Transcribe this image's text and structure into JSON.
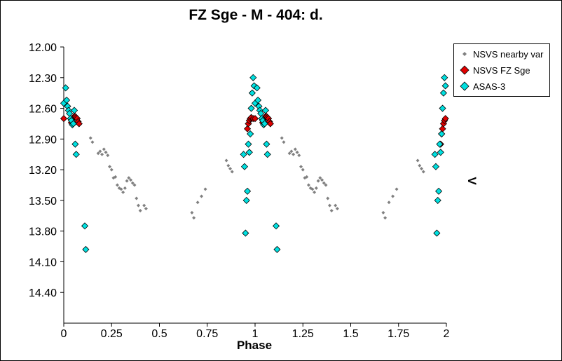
{
  "chart_data": {
    "type": "scatter",
    "title": "FZ Sge - M - 404: d.",
    "xlabel": "Phase",
    "ylabel": "V",
    "xlim": [
      0,
      2
    ],
    "ylim": [
      12.0,
      14.7
    ],
    "y_inverted": true,
    "x_ticks": [
      "0",
      "0.25",
      "0.5",
      "0.75",
      "1",
      "1.25",
      "1.5",
      "1.75",
      "2"
    ],
    "x_tick_values": [
      0,
      0.25,
      0.5,
      0.75,
      1,
      1.25,
      1.5,
      1.75,
      2
    ],
    "y_ticks": [
      "12.00",
      "12.30",
      "12.60",
      "12.90",
      "13.20",
      "13.50",
      "13.80",
      "14.10",
      "14.40"
    ],
    "y_tick_values": [
      12.0,
      12.3,
      12.6,
      12.9,
      13.2,
      13.5,
      13.8,
      14.1,
      14.4
    ],
    "grid": false,
    "legend_position": "top-right",
    "series": [
      {
        "name": "NSVS nearby var",
        "color": "#808080",
        "marker": "small-diamond",
        "points": [
          [
            0.14,
            12.89
          ],
          [
            0.15,
            12.93
          ],
          [
            0.18,
            13.04
          ],
          [
            0.19,
            13.02
          ],
          [
            0.2,
            13.05
          ],
          [
            0.21,
            13.0
          ],
          [
            0.22,
            13.03
          ],
          [
            0.23,
            13.06
          ],
          [
            0.24,
            13.17
          ],
          [
            0.25,
            13.2
          ],
          [
            0.26,
            13.28
          ],
          [
            0.27,
            13.27
          ],
          [
            0.28,
            13.35
          ],
          [
            0.29,
            13.38
          ],
          [
            0.3,
            13.39
          ],
          [
            0.31,
            13.42
          ],
          [
            0.32,
            13.38
          ],
          [
            0.33,
            13.31
          ],
          [
            0.34,
            13.28
          ],
          [
            0.35,
            13.3
          ],
          [
            0.36,
            13.33
          ],
          [
            0.37,
            13.35
          ],
          [
            0.38,
            13.48
          ],
          [
            0.39,
            13.55
          ],
          [
            0.4,
            13.6
          ],
          [
            0.42,
            13.55
          ],
          [
            0.43,
            13.58
          ],
          [
            0.67,
            13.62
          ],
          [
            0.68,
            13.67
          ],
          [
            0.7,
            13.52
          ],
          [
            0.72,
            13.46
          ],
          [
            0.74,
            13.39
          ],
          [
            0.85,
            13.11
          ],
          [
            0.86,
            13.16
          ],
          [
            0.87,
            13.19
          ],
          [
            0.88,
            13.22
          ],
          [
            1.14,
            12.89
          ],
          [
            1.15,
            12.93
          ],
          [
            1.18,
            13.04
          ],
          [
            1.19,
            13.02
          ],
          [
            1.2,
            13.05
          ],
          [
            1.21,
            13.0
          ],
          [
            1.22,
            13.03
          ],
          [
            1.23,
            13.06
          ],
          [
            1.24,
            13.17
          ],
          [
            1.25,
            13.2
          ],
          [
            1.26,
            13.28
          ],
          [
            1.27,
            13.27
          ],
          [
            1.28,
            13.35
          ],
          [
            1.29,
            13.38
          ],
          [
            1.3,
            13.39
          ],
          [
            1.31,
            13.42
          ],
          [
            1.32,
            13.38
          ],
          [
            1.33,
            13.31
          ],
          [
            1.34,
            13.28
          ],
          [
            1.35,
            13.3
          ],
          [
            1.36,
            13.33
          ],
          [
            1.37,
            13.35
          ],
          [
            1.38,
            13.48
          ],
          [
            1.39,
            13.55
          ],
          [
            1.4,
            13.6
          ],
          [
            1.42,
            13.55
          ],
          [
            1.43,
            13.58
          ],
          [
            1.67,
            13.62
          ],
          [
            1.68,
            13.67
          ],
          [
            1.7,
            13.52
          ],
          [
            1.72,
            13.46
          ],
          [
            1.74,
            13.39
          ],
          [
            1.85,
            13.11
          ],
          [
            1.86,
            13.16
          ],
          [
            1.87,
            13.19
          ],
          [
            1.88,
            13.22
          ]
        ]
      },
      {
        "name": "NSVS FZ Sge",
        "color": "#e00000",
        "marker": "diamond",
        "points": [
          [
            0.0,
            12.7
          ],
          [
            0.04,
            12.74
          ],
          [
            0.045,
            12.71
          ],
          [
            0.05,
            12.69
          ],
          [
            0.055,
            12.68
          ],
          [
            0.06,
            12.68
          ],
          [
            0.065,
            12.69
          ],
          [
            0.07,
            12.7
          ],
          [
            0.075,
            12.73
          ],
          [
            0.08,
            12.75
          ],
          [
            0.96,
            12.8
          ],
          [
            0.965,
            12.75
          ],
          [
            0.97,
            12.72
          ],
          [
            0.975,
            12.7
          ],
          [
            0.98,
            12.69
          ],
          [
            0.99,
            12.7
          ],
          [
            1.0,
            12.7
          ],
          [
            1.04,
            12.74
          ],
          [
            1.045,
            12.71
          ],
          [
            1.05,
            12.69
          ],
          [
            1.055,
            12.68
          ],
          [
            1.06,
            12.68
          ],
          [
            1.065,
            12.69
          ],
          [
            1.07,
            12.7
          ],
          [
            1.075,
            12.73
          ],
          [
            1.08,
            12.75
          ],
          [
            1.97,
            12.95
          ],
          [
            1.975,
            12.85
          ],
          [
            1.98,
            12.8
          ],
          [
            1.985,
            12.75
          ],
          [
            1.99,
            12.72
          ],
          [
            1.995,
            12.7
          ]
        ]
      },
      {
        "name": "ASAS-3",
        "color": "#00e0e0",
        "marker": "diamond",
        "points": [
          [
            0.0,
            12.55
          ],
          [
            0.01,
            12.4
          ],
          [
            0.015,
            12.52
          ],
          [
            0.02,
            12.58
          ],
          [
            0.025,
            12.62
          ],
          [
            0.03,
            12.65
          ],
          [
            0.035,
            12.7
          ],
          [
            0.04,
            12.72
          ],
          [
            0.045,
            12.76
          ],
          [
            0.05,
            12.75
          ],
          [
            0.055,
            12.62
          ],
          [
            0.06,
            12.95
          ],
          [
            0.065,
            13.05
          ],
          [
            0.11,
            13.75
          ],
          [
            0.115,
            13.98
          ],
          [
            0.94,
            13.05
          ],
          [
            0.945,
            13.17
          ],
          [
            0.95,
            13.82
          ],
          [
            0.955,
            13.5
          ],
          [
            0.96,
            13.41
          ],
          [
            0.965,
            12.95
          ],
          [
            0.97,
            13.03
          ],
          [
            0.975,
            12.85
          ],
          [
            0.98,
            12.6
          ],
          [
            0.985,
            12.45
          ],
          [
            0.99,
            12.3
          ],
          [
            0.995,
            12.38
          ],
          [
            1.0,
            12.55
          ],
          [
            1.01,
            12.4
          ],
          [
            1.015,
            12.52
          ],
          [
            1.02,
            12.58
          ],
          [
            1.025,
            12.62
          ],
          [
            1.03,
            12.65
          ],
          [
            1.035,
            12.7
          ],
          [
            1.04,
            12.72
          ],
          [
            1.045,
            12.76
          ],
          [
            1.05,
            12.75
          ],
          [
            1.055,
            12.62
          ],
          [
            1.06,
            12.95
          ],
          [
            1.065,
            13.05
          ],
          [
            1.11,
            13.75
          ],
          [
            1.115,
            13.98
          ],
          [
            1.94,
            13.05
          ],
          [
            1.945,
            13.17
          ],
          [
            1.95,
            13.82
          ],
          [
            1.955,
            13.5
          ],
          [
            1.96,
            13.41
          ],
          [
            1.965,
            12.95
          ],
          [
            1.97,
            13.03
          ],
          [
            1.975,
            12.85
          ],
          [
            1.98,
            12.6
          ],
          [
            1.985,
            12.45
          ],
          [
            1.99,
            12.3
          ],
          [
            1.995,
            12.38
          ]
        ]
      }
    ]
  }
}
